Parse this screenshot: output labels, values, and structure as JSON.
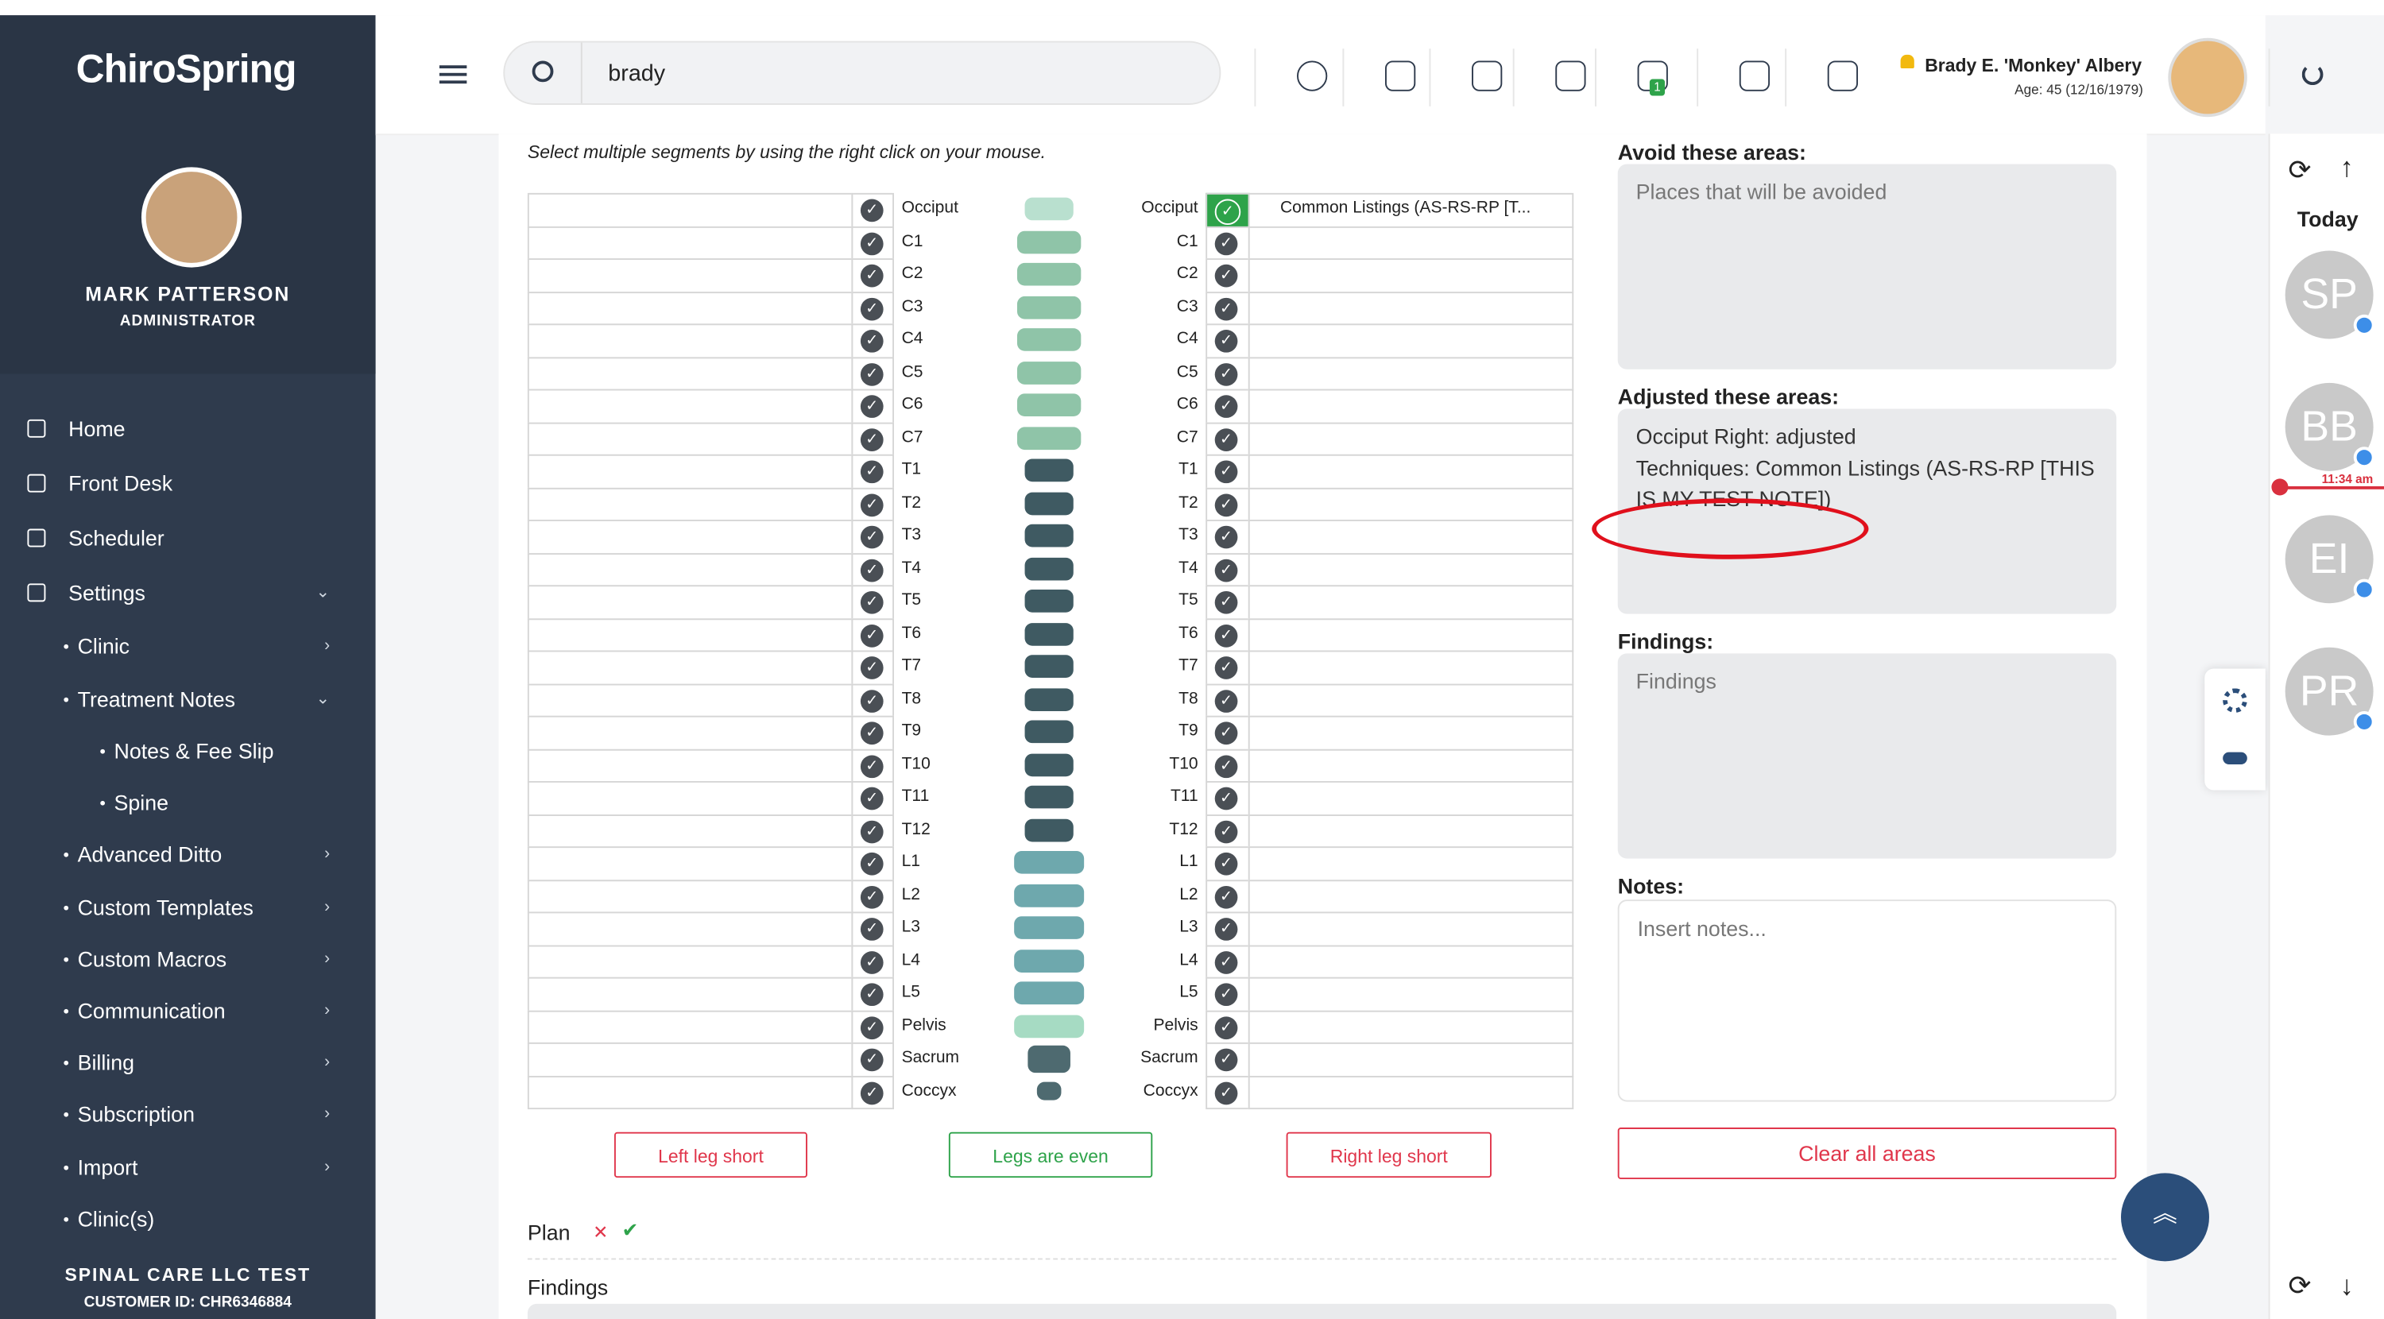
{
  "logo": "ChiroSpring",
  "user": {
    "name": "MARK PATTERSON",
    "role": "ADMINISTRATOR"
  },
  "nav": [
    "Home",
    "Front Desk",
    "Scheduler",
    "Settings",
    "Clinic",
    "Treatment Notes",
    "Notes & Fee Slip",
    "Spine",
    "Advanced Ditto",
    "Custom Templates",
    "Custom Macros",
    "Communication",
    "Billing",
    "Subscription",
    "Import",
    "Clinic(s)"
  ],
  "footer": {
    "company": "SPINAL CARE LLC TEST",
    "customer_id": "CUSTOMER ID: CHR6346884"
  },
  "search": "brady",
  "message_count": "1",
  "patient": {
    "name": "Brady E. 'Monkey' Albery",
    "age": "Age: 45 (12/16/1979)"
  },
  "instruction": "Select multiple segments by using the right click on your mouse.",
  "segments": [
    "Occiput",
    "C1",
    "C2",
    "C3",
    "C4",
    "C5",
    "C6",
    "C7",
    "T1",
    "T2",
    "T3",
    "T4",
    "T5",
    "T6",
    "T7",
    "T8",
    "T9",
    "T10",
    "T11",
    "T12",
    "L1",
    "L2",
    "L3",
    "L4",
    "L5",
    "Pelvis",
    "Sacrum",
    "Coccyx"
  ],
  "right_note": "Common Listings (AS-RS-RP [T...",
  "leg_buttons": [
    "Left leg short",
    "Legs are even",
    "Right leg short"
  ],
  "fields": [
    {
      "label": "Avoid these areas:",
      "text": "Places that will be avoided"
    },
    {
      "label": "Adjusted these areas:",
      "text": "Occiput Right: adjusted\nTechniques: Common Listings (AS-RS-RP [THIS IS MY TEST NOTE])"
    },
    {
      "label": "Findings:",
      "text": "Findings"
    },
    {
      "label": "Notes:",
      "text": "Insert notes..."
    }
  ],
  "clear_button": "Clear all areas",
  "plan": "Plan",
  "findings_heading": "Findings",
  "schedule": {
    "today": "Today",
    "time": "11:34 am",
    "avatars": [
      "SP",
      "BB",
      "EI",
      "PR"
    ]
  }
}
